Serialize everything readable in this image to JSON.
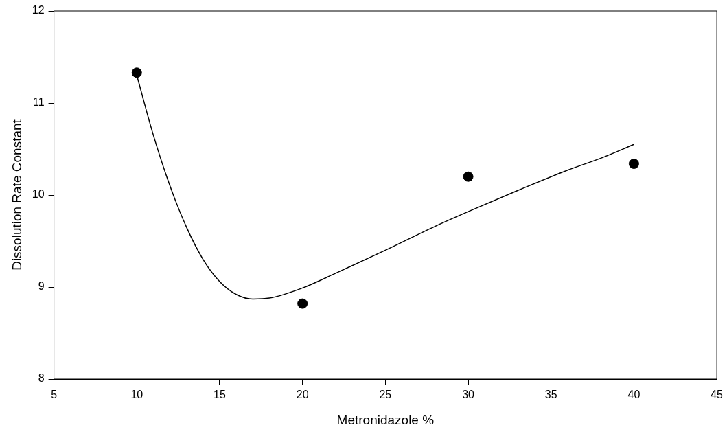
{
  "chart_data": {
    "type": "scatter",
    "xlabel": "Metronidazole %",
    "ylabel": "Dissolution Rate Constant",
    "xlim": [
      5,
      45
    ],
    "xticks": [
      5,
      10,
      15,
      20,
      25,
      30,
      35,
      40,
      45
    ],
    "ylim": [
      8,
      12
    ],
    "yticks": [
      8,
      9,
      10,
      11,
      12
    ],
    "grid": false,
    "legend": false,
    "marker": "circle",
    "series": [
      {
        "type": "scatter",
        "color": "#000000",
        "x": [
          10,
          20,
          30,
          40
        ],
        "values": [
          11.33,
          8.82,
          10.2,
          10.34
        ]
      },
      {
        "type": "line",
        "color": "#000000",
        "marker": "none",
        "line_style": "solid",
        "x": [
          10,
          11,
          12,
          13,
          14,
          15,
          16,
          17,
          18,
          20,
          22,
          25,
          28,
          30,
          33,
          36,
          38,
          40
        ],
        "values": [
          11.3,
          10.65,
          10.1,
          9.65,
          9.3,
          9.06,
          8.92,
          8.87,
          8.88,
          8.99,
          9.15,
          9.4,
          9.66,
          9.82,
          10.05,
          10.27,
          10.4,
          10.55
        ]
      }
    ]
  }
}
